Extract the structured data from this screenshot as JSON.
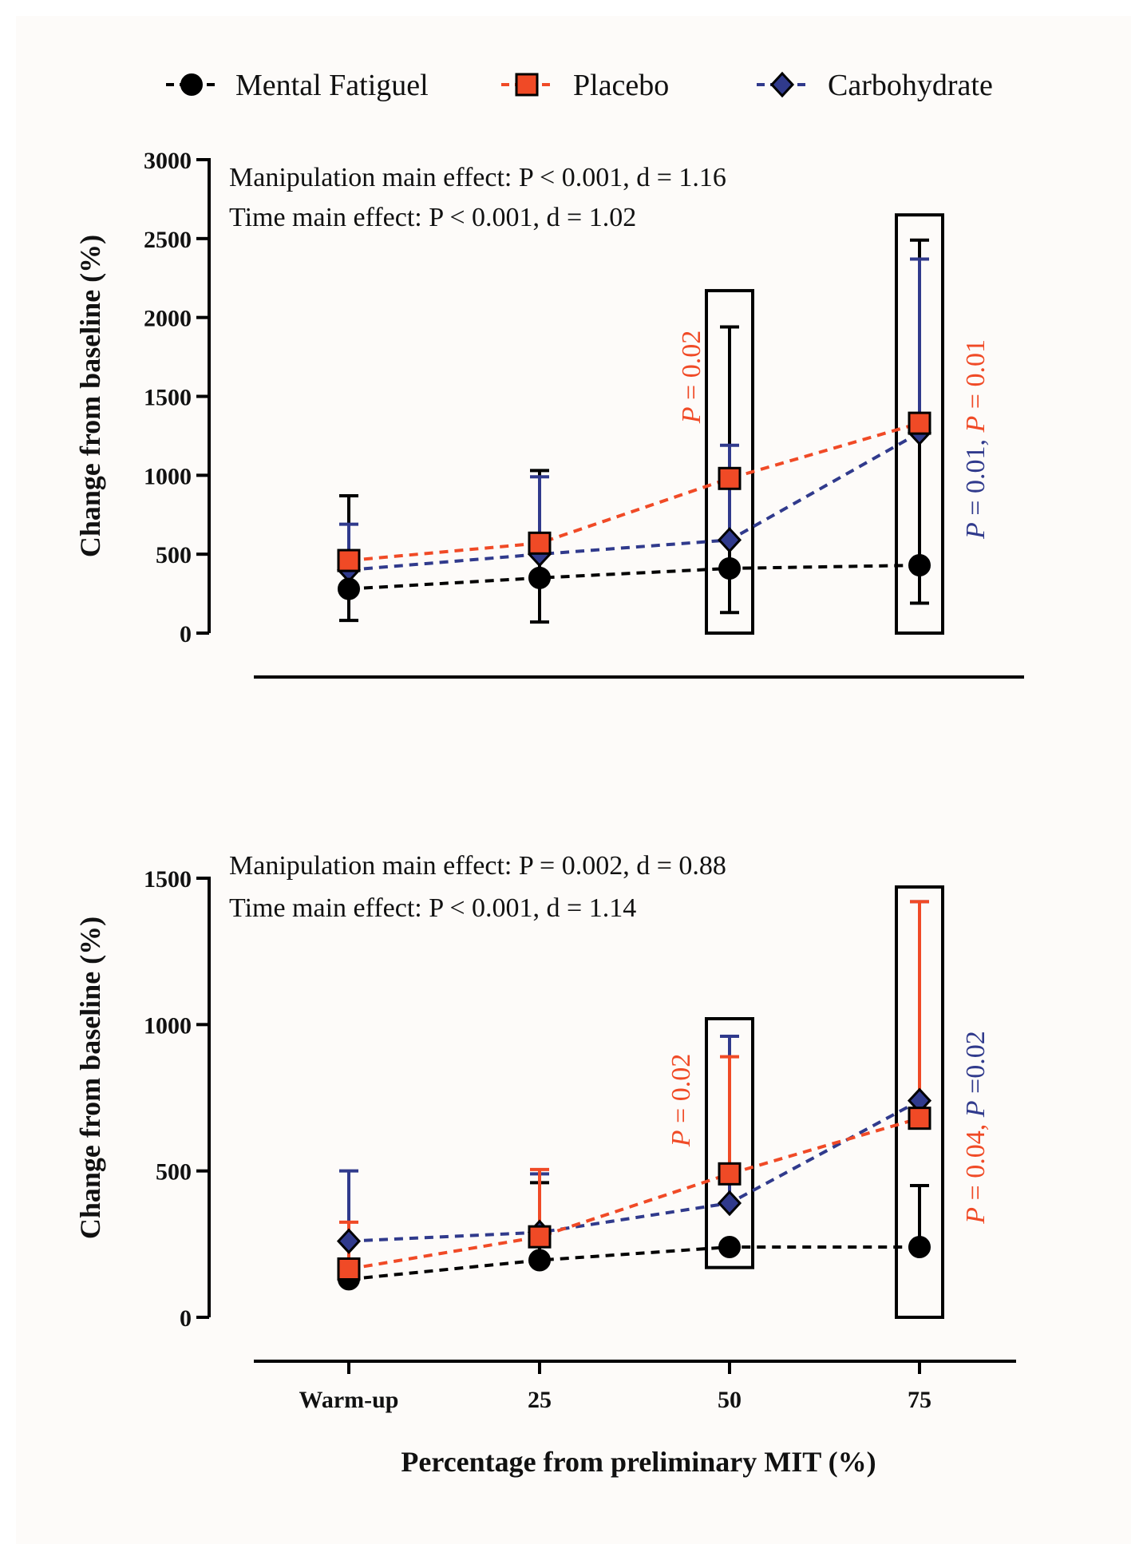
{
  "figure": {
    "legend": [
      {
        "name": "Mental Fatiguel",
        "color": "#000000",
        "marker": "circle"
      },
      {
        "name": "Placebo",
        "color": "#f04a26",
        "marker": "square"
      },
      {
        "name": "Carbohydrate",
        "color": "#303a8c",
        "marker": "diamond"
      }
    ],
    "xlabel": "Percentage from preliminary MIT (%)"
  },
  "chart_data": [
    {
      "type": "line",
      "title": "",
      "ylabel": "Change from baseline (%)",
      "xlabel": "",
      "ylim": [
        0,
        3000
      ],
      "yticks": [
        "0",
        "500",
        "1000",
        "1500",
        "2000",
        "2500",
        "3000"
      ],
      "categories": [
        "Warm-up",
        "25",
        "50",
        "75"
      ],
      "annotations": [
        "Manipulation main effect: P < 0.001, d = 1.16",
        "Time main effect: P < 0.001, d = 1.02"
      ],
      "series": [
        {
          "name": "Mental Fatiguel",
          "color": "#000000",
          "values": [
            280,
            350,
            410,
            430
          ],
          "err_low": [
            80,
            70,
            130,
            190
          ],
          "err_high": [
            870,
            1030,
            1940,
            2490
          ]
        },
        {
          "name": "Placebo",
          "color": "#f04a26",
          "values": [
            460,
            570,
            980,
            1330
          ],
          "err_low": [
            460,
            570,
            980,
            1330
          ],
          "err_high": [
            460,
            570,
            980,
            1330
          ]
        },
        {
          "name": "Carbohydrate",
          "color": "#303a8c",
          "values": [
            400,
            500,
            590,
            1270
          ],
          "err_low": [
            400,
            500,
            590,
            1270
          ],
          "err_high": [
            690,
            990,
            1190,
            2370
          ]
        }
      ],
      "highlight_boxes": [
        {
          "category": "50",
          "ymin": 0,
          "ymax": 2170
        },
        {
          "category": "75",
          "ymin": 0,
          "ymax": 2650
        }
      ],
      "pvalue_labels": [
        {
          "category": "50",
          "parts": [
            {
              "text": "P = 0.02",
              "color": "#f04a26"
            }
          ]
        },
        {
          "category": "75",
          "parts": [
            {
              "text": "P = 0.01, ",
              "color": "#303a8c"
            },
            {
              "text": "P = 0.01",
              "color": "#f04a26"
            }
          ]
        }
      ]
    },
    {
      "type": "line",
      "title": "",
      "ylabel": "Change from baseline (%)",
      "xlabel": "Percentage from preliminary MIT (%)",
      "ylim": [
        0,
        1500
      ],
      "yticks": [
        "0",
        "500",
        "1000",
        "1500"
      ],
      "categories": [
        "Warm-up",
        "25",
        "50",
        "75"
      ],
      "annotations": [
        "Manipulation main effect: P = 0.002, d = 0.88",
        "Time main effect: P < 0.001, d = 1.14"
      ],
      "series": [
        {
          "name": "Mental Fatiguel",
          "color": "#000000",
          "values": [
            130,
            195,
            240,
            240
          ],
          "err_low": [
            130,
            195,
            240,
            240
          ],
          "err_high": [
            130,
            460,
            240,
            450
          ]
        },
        {
          "name": "Placebo",
          "color": "#f04a26",
          "values": [
            165,
            275,
            490,
            680
          ],
          "err_low": [
            165,
            275,
            490,
            680
          ],
          "err_high": [
            325,
            505,
            890,
            1420
          ]
        },
        {
          "name": "Carbohydrate",
          "color": "#303a8c",
          "values": [
            260,
            290,
            390,
            740
          ],
          "err_low": [
            260,
            290,
            390,
            740
          ],
          "err_high": [
            500,
            490,
            960,
            1420
          ]
        }
      ],
      "highlight_boxes": [
        {
          "category": "50",
          "ymin": 170,
          "ymax": 1020
        },
        {
          "category": "75",
          "ymin": 0,
          "ymax": 1470
        }
      ],
      "pvalue_labels": [
        {
          "category": "50",
          "parts": [
            {
              "text": "P = 0.02",
              "color": "#f04a26"
            }
          ]
        },
        {
          "category": "75",
          "parts": [
            {
              "text": "P = 0.04, ",
              "color": "#f04a26"
            },
            {
              "text": "P =0.02",
              "color": "#303a8c"
            }
          ]
        }
      ]
    }
  ]
}
